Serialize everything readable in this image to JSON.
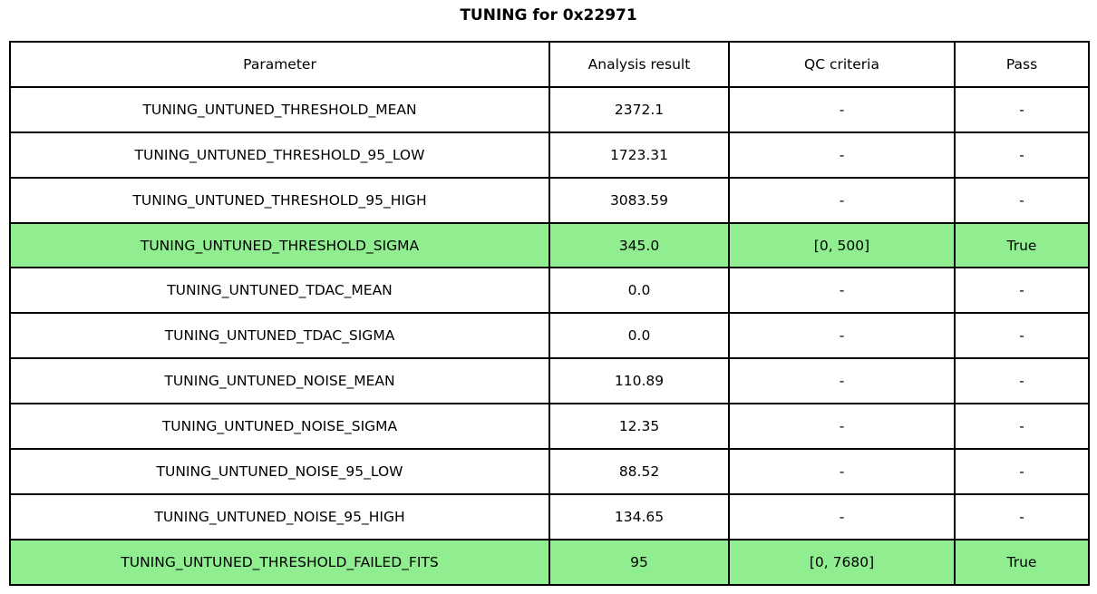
{
  "title": "TUNING for 0x22971",
  "colors": {
    "highlight_green": "#90EE90",
    "border": "#000000",
    "background": "#ffffff"
  },
  "table": {
    "headers": {
      "parameter": "Parameter",
      "result": "Analysis result",
      "qc": "QC criteria",
      "pass": "Pass"
    },
    "rows": [
      {
        "parameter": "TUNING_UNTUNED_THRESHOLD_MEAN",
        "result": "2372.1",
        "qc": "-",
        "pass": "-",
        "highlight": false
      },
      {
        "parameter": "TUNING_UNTUNED_THRESHOLD_95_LOW",
        "result": "1723.31",
        "qc": "-",
        "pass": "-",
        "highlight": false
      },
      {
        "parameter": "TUNING_UNTUNED_THRESHOLD_95_HIGH",
        "result": "3083.59",
        "qc": "-",
        "pass": "-",
        "highlight": false
      },
      {
        "parameter": "TUNING_UNTUNED_THRESHOLD_SIGMA",
        "result": "345.0",
        "qc": "[0, 500]",
        "pass": "True",
        "highlight": true
      },
      {
        "parameter": "TUNING_UNTUNED_TDAC_MEAN",
        "result": "0.0",
        "qc": "-",
        "pass": "-",
        "highlight": false
      },
      {
        "parameter": "TUNING_UNTUNED_TDAC_SIGMA",
        "result": "0.0",
        "qc": "-",
        "pass": "-",
        "highlight": false
      },
      {
        "parameter": "TUNING_UNTUNED_NOISE_MEAN",
        "result": "110.89",
        "qc": "-",
        "pass": "-",
        "highlight": false
      },
      {
        "parameter": "TUNING_UNTUNED_NOISE_SIGMA",
        "result": "12.35",
        "qc": "-",
        "pass": "-",
        "highlight": false
      },
      {
        "parameter": "TUNING_UNTUNED_NOISE_95_LOW",
        "result": "88.52",
        "qc": "-",
        "pass": "-",
        "highlight": false
      },
      {
        "parameter": "TUNING_UNTUNED_NOISE_95_HIGH",
        "result": "134.65",
        "qc": "-",
        "pass": "-",
        "highlight": false
      },
      {
        "parameter": "TUNING_UNTUNED_THRESHOLD_FAILED_FITS",
        "result": "95",
        "qc": "[0, 7680]",
        "pass": "True",
        "highlight": true
      }
    ]
  },
  "chart_data": {
    "type": "table",
    "title": "TUNING for 0x22971",
    "columns": [
      "Parameter",
      "Analysis result",
      "QC criteria",
      "Pass"
    ],
    "rows": [
      [
        "TUNING_UNTUNED_THRESHOLD_MEAN",
        "2372.1",
        "-",
        "-"
      ],
      [
        "TUNING_UNTUNED_THRESHOLD_95_LOW",
        "1723.31",
        "-",
        "-"
      ],
      [
        "TUNING_UNTUNED_THRESHOLD_95_HIGH",
        "3083.59",
        "-",
        "-"
      ],
      [
        "TUNING_UNTUNED_THRESHOLD_SIGMA",
        "345.0",
        "[0, 500]",
        "True"
      ],
      [
        "TUNING_UNTUNED_TDAC_MEAN",
        "0.0",
        "-",
        "-"
      ],
      [
        "TUNING_UNTUNED_TDAC_SIGMA",
        "0.0",
        "-",
        "-"
      ],
      [
        "TUNING_UNTUNED_NOISE_MEAN",
        "110.89",
        "-",
        "-"
      ],
      [
        "TUNING_UNTUNED_NOISE_SIGMA",
        "12.35",
        "-",
        "-"
      ],
      [
        "TUNING_UNTUNED_NOISE_95_LOW",
        "88.52",
        "-",
        "-"
      ],
      [
        "TUNING_UNTUNED_NOISE_95_HIGH",
        "134.65",
        "-",
        "-"
      ],
      [
        "TUNING_UNTUNED_THRESHOLD_FAILED_FITS",
        "95",
        "[0, 7680]",
        "True"
      ]
    ],
    "highlighted_rows": [
      3,
      10
    ],
    "layout": {
      "grid": true,
      "cell_text_align": "center",
      "highlight_color": "#90EE90"
    }
  }
}
